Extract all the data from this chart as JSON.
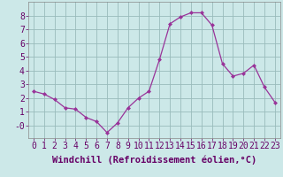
{
  "x": [
    0,
    1,
    2,
    3,
    4,
    5,
    6,
    7,
    8,
    9,
    10,
    11,
    12,
    13,
    14,
    15,
    16,
    17,
    18,
    19,
    20,
    21,
    22,
    23
  ],
  "y": [
    2.5,
    2.3,
    1.9,
    1.3,
    1.2,
    0.6,
    0.3,
    -0.5,
    0.2,
    1.3,
    2.0,
    2.5,
    4.8,
    7.4,
    7.9,
    8.2,
    8.2,
    7.3,
    4.5,
    3.6,
    3.8,
    4.4,
    2.8,
    1.7
  ],
  "line_color": "#993399",
  "marker": "D",
  "marker_size": 2,
  "bg_color": "#cce8e8",
  "grid_color": "#99bbbb",
  "xlabel": "Windchill (Refroidissement éolien,°C)",
  "xlabel_fontsize": 7.5,
  "xlim": [
    -0.5,
    23.5
  ],
  "ylim": [
    -0.9,
    9.0
  ],
  "yticks": [
    0,
    1,
    2,
    3,
    4,
    5,
    6,
    7,
    8
  ],
  "ytick_labels": [
    "-0",
    "1",
    "2",
    "3",
    "4",
    "5",
    "6",
    "7",
    "8"
  ],
  "tick_fontsize": 7
}
